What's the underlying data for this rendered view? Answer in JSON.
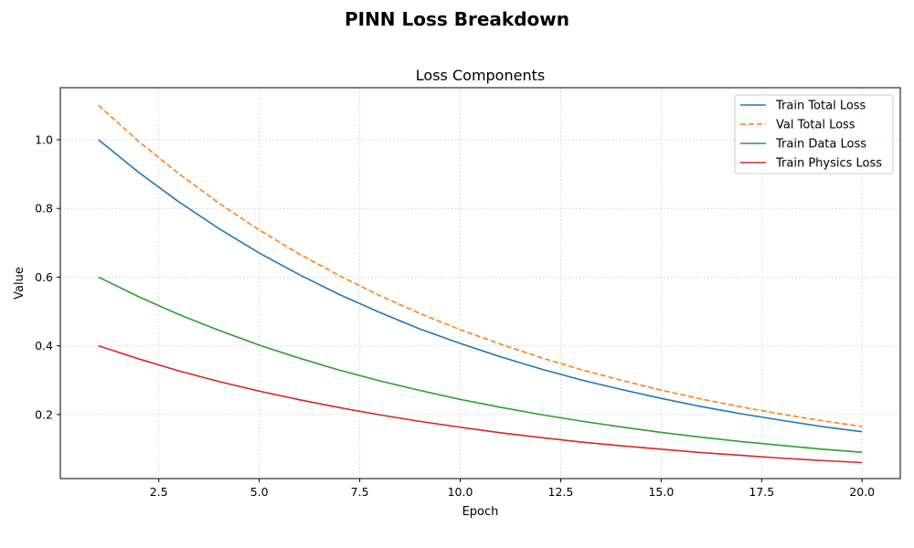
{
  "figure": {
    "suptitle": "PINN Loss Breakdown"
  },
  "chart_data": {
    "type": "line",
    "title": "Loss Components",
    "xlabel": "Epoch",
    "ylabel": "Value",
    "xlim": [
      0.05,
      20.95
    ],
    "ylim": [
      0.0135,
      1.1515
    ],
    "xticks": [
      2.5,
      5.0,
      7.5,
      10.0,
      12.5,
      15.0,
      17.5,
      20.0
    ],
    "xtick_labels": [
      "2.5",
      "5.0",
      "7.5",
      "10.0",
      "12.5",
      "15.0",
      "17.5",
      "20.0"
    ],
    "yticks": [
      0.2,
      0.4,
      0.6,
      0.8,
      1.0
    ],
    "ytick_labels": [
      "0.2",
      "0.4",
      "0.6",
      "0.8",
      "1.0"
    ],
    "grid": true,
    "legend_position": "top-right",
    "x": [
      1,
      2,
      3,
      4,
      5,
      6,
      7,
      8,
      9,
      10,
      11,
      12,
      13,
      14,
      15,
      16,
      17,
      18,
      19,
      20
    ],
    "series": [
      {
        "name": "Train Total Loss",
        "color": "#1f77b4",
        "dash": "solid",
        "values": [
          1.0,
          0.905,
          0.819,
          0.741,
          0.67,
          0.607,
          0.549,
          0.497,
          0.449,
          0.407,
          0.368,
          0.333,
          0.301,
          0.273,
          0.247,
          0.223,
          0.202,
          0.183,
          0.165,
          0.15
        ]
      },
      {
        "name": "Val Total Loss",
        "color": "#ff7f0e",
        "dash": "dashed",
        "values": [
          1.1,
          0.995,
          0.901,
          0.815,
          0.737,
          0.667,
          0.604,
          0.546,
          0.494,
          0.447,
          0.405,
          0.366,
          0.331,
          0.3,
          0.271,
          0.245,
          0.222,
          0.201,
          0.182,
          0.165
        ]
      },
      {
        "name": "Train Data Loss",
        "color": "#2ca02c",
        "dash": "solid",
        "values": [
          0.6,
          0.543,
          0.491,
          0.445,
          0.402,
          0.364,
          0.329,
          0.298,
          0.27,
          0.244,
          0.221,
          0.2,
          0.181,
          0.164,
          0.148,
          0.134,
          0.121,
          0.11,
          0.099,
          0.09
        ]
      },
      {
        "name": "Train Physics Loss",
        "color": "#d62728",
        "dash": "solid",
        "values": [
          0.4,
          0.362,
          0.327,
          0.296,
          0.268,
          0.243,
          0.22,
          0.199,
          0.18,
          0.163,
          0.147,
          0.133,
          0.12,
          0.109,
          0.099,
          0.089,
          0.081,
          0.073,
          0.066,
          0.06
        ]
      }
    ]
  }
}
